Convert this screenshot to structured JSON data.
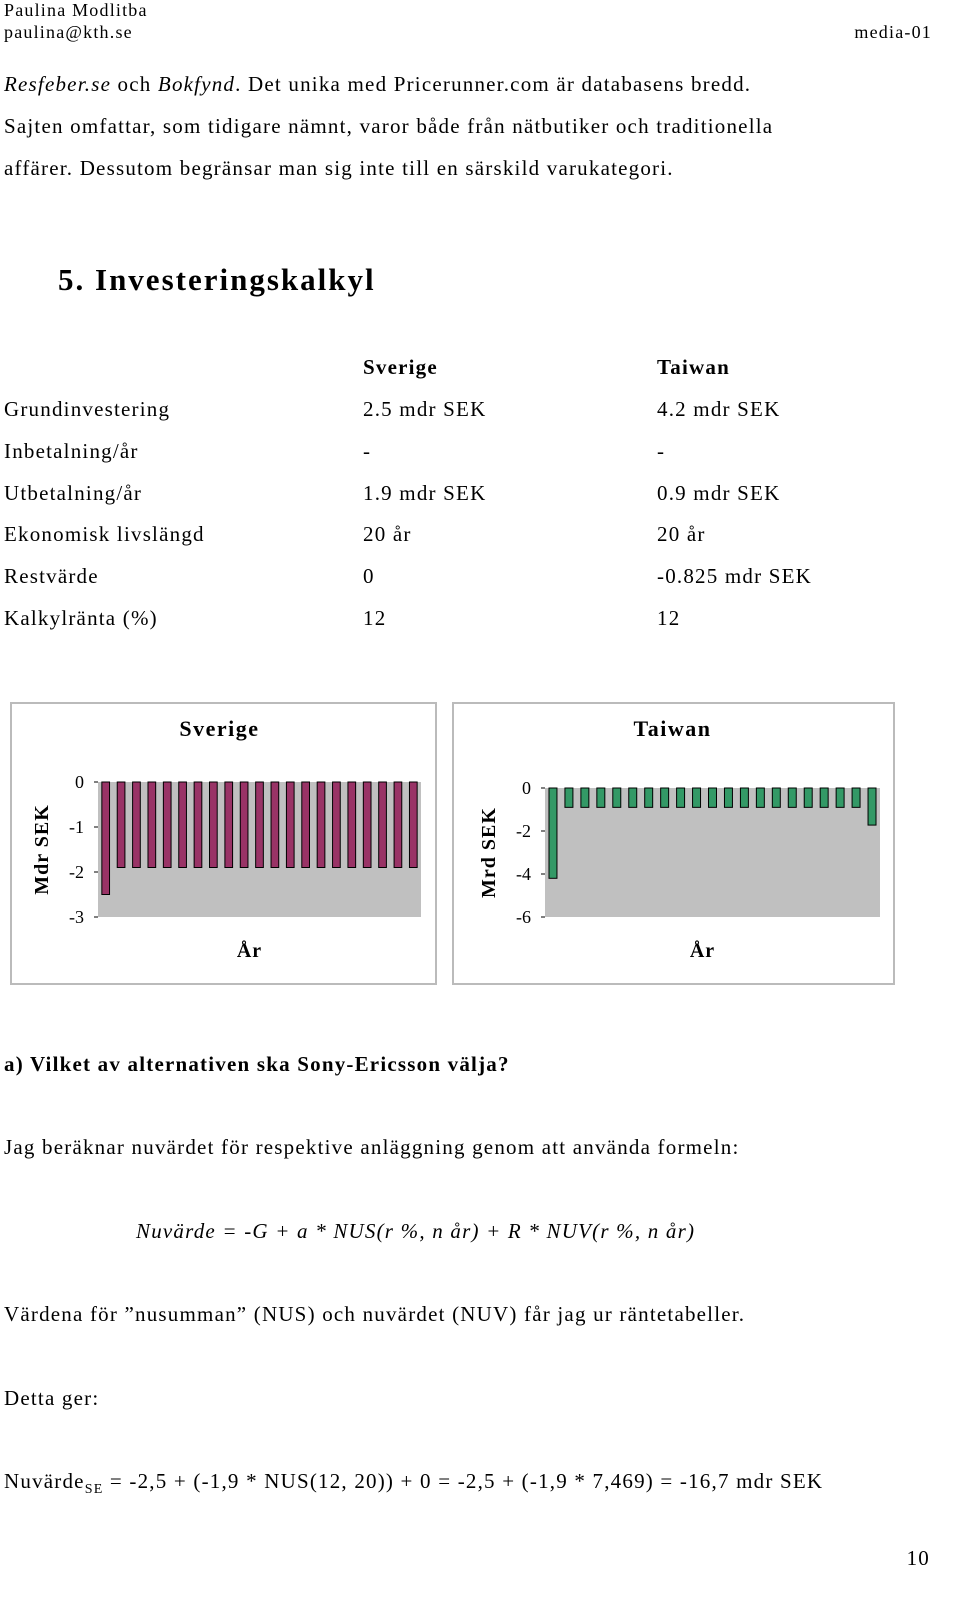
{
  "header": {
    "author": "Paulina Modlitba",
    "email": "paulina@kth.se",
    "course": "media-01"
  },
  "intro": {
    "line1": [
      "Resfeber.se",
      " och ",
      "Bokfynd",
      ". Det unika med Pricerunner.com är databasens bredd."
    ],
    "line2": "Sajten omfattar, som tidigare nämnt, varor både från nätbutiker och traditionella",
    "line3": "affärer. Dessutom begränsar man sig inte till en särskild varukategori."
  },
  "section_title": "5. Investeringskalkyl",
  "table": {
    "columns": [
      "Sverige",
      "Taiwan"
    ],
    "rows": [
      [
        "Grundinvestering",
        "2.5 mdr SEK",
        "4.2 mdr SEK"
      ],
      [
        "Inbetalning/år",
        "-",
        "-"
      ],
      [
        "Utbetalning/år",
        "1.9 mdr SEK",
        "0.9 mdr SEK"
      ],
      [
        "Ekonomisk livslängd",
        "20 år",
        "20 år"
      ],
      [
        "Restvärde",
        "0",
        "-0.825 mdr SEK"
      ],
      [
        "Kalkylränta (%)",
        "12",
        "12"
      ]
    ]
  },
  "chart_data": [
    {
      "type": "bar",
      "title": "Sverige",
      "ylabel": "Mdr SEK",
      "xlabel": "År",
      "categories": [
        null,
        null,
        null,
        null,
        null,
        null,
        null,
        null,
        null,
        null,
        null,
        null,
        null,
        null,
        null,
        null,
        null,
        null,
        null,
        null,
        null
      ],
      "values": [
        -2.5,
        -1.9,
        -1.9,
        -1.9,
        -1.9,
        -1.9,
        -1.9,
        -1.9,
        -1.9,
        -1.9,
        -1.9,
        -1.9,
        -1.9,
        -1.9,
        -1.9,
        -1.9,
        -1.9,
        -1.9,
        -1.9,
        -1.9,
        -1.9
      ],
      "color": "#993366",
      "ylim": [
        -3,
        0
      ],
      "yticks": [
        0,
        -1,
        -2,
        -3
      ]
    },
    {
      "type": "bar",
      "title": "Taiwan",
      "ylabel": "Mrd SEK",
      "xlabel": "År",
      "categories": [
        null,
        null,
        null,
        null,
        null,
        null,
        null,
        null,
        null,
        null,
        null,
        null,
        null,
        null,
        null,
        null,
        null,
        null,
        null,
        null,
        null
      ],
      "values": [
        -4.2,
        -0.9,
        -0.9,
        -0.9,
        -0.9,
        -0.9,
        -0.9,
        -0.9,
        -0.9,
        -0.9,
        -0.9,
        -0.9,
        -0.9,
        -0.9,
        -0.9,
        -0.9,
        -0.9,
        -0.9,
        -0.9,
        -0.9,
        -1.725
      ],
      "color": "#339966",
      "ylim": [
        -6,
        0
      ],
      "yticks": [
        0,
        -2,
        -4,
        -6
      ]
    }
  ],
  "question": "a) Vilket av alternativen ska Sony-Ericsson välja?",
  "paragraph1": "Jag beräknar nuvärdet för respektive anläggning genom att använda formeln:",
  "formula": "Nuvärde = -G + a * NUS(r %, n år) + R * NUV(r %, n år)",
  "paragraph2": "Värdena för ”nusumman” (NUS) och nuvärdet (NUV) får jag ur räntetabeller.",
  "paragraph3": "Detta ger:",
  "result": {
    "label": "Nuvärde",
    "subscript": "SE",
    "text": " = -2,5 + (-1,9 * NUS(12, 20)) + 0 = -2,5 + (-1,9 * 7,469) = -16,7 mdr SEK"
  },
  "page_number": "10"
}
